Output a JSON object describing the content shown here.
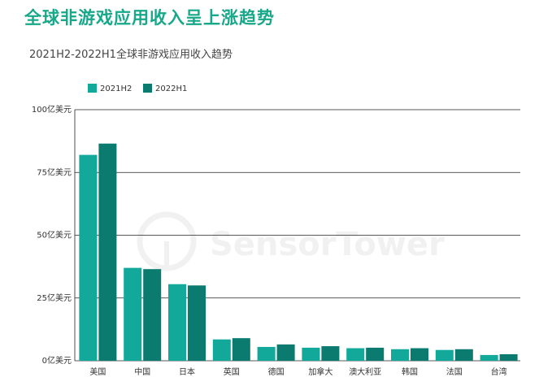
{
  "title": "全球非游戏应用收入呈上涨趋势",
  "subtitle": "2021H2-2022H1全球非游戏应用收入趋势",
  "watermark": "SensorTower",
  "colors": {
    "title": "#17a88a",
    "h2_2021": "#12a99b",
    "h1_2022": "#0b7a6f"
  },
  "chart_data": {
    "type": "bar",
    "categories": [
      "美国",
      "中国",
      "日本",
      "英国",
      "德国",
      "加拿大",
      "澳大利亚",
      "韩国",
      "法国",
      "台湾"
    ],
    "series": [
      {
        "name": "2021H2",
        "values": [
          82,
          37,
          30.5,
          8.5,
          5.5,
          5.2,
          5.0,
          4.6,
          4.3,
          2.3
        ]
      },
      {
        "name": "2022H1",
        "values": [
          86.5,
          36.5,
          30,
          9,
          6.5,
          5.8,
          5.2,
          5.0,
          4.6,
          2.6
        ]
      }
    ],
    "yticks": [
      "0亿美元",
      "25亿美元",
      "50亿美元",
      "75亿美元",
      "100亿美元"
    ],
    "ylim": [
      0,
      100
    ],
    "legend_position": "top-left",
    "grid": true
  }
}
